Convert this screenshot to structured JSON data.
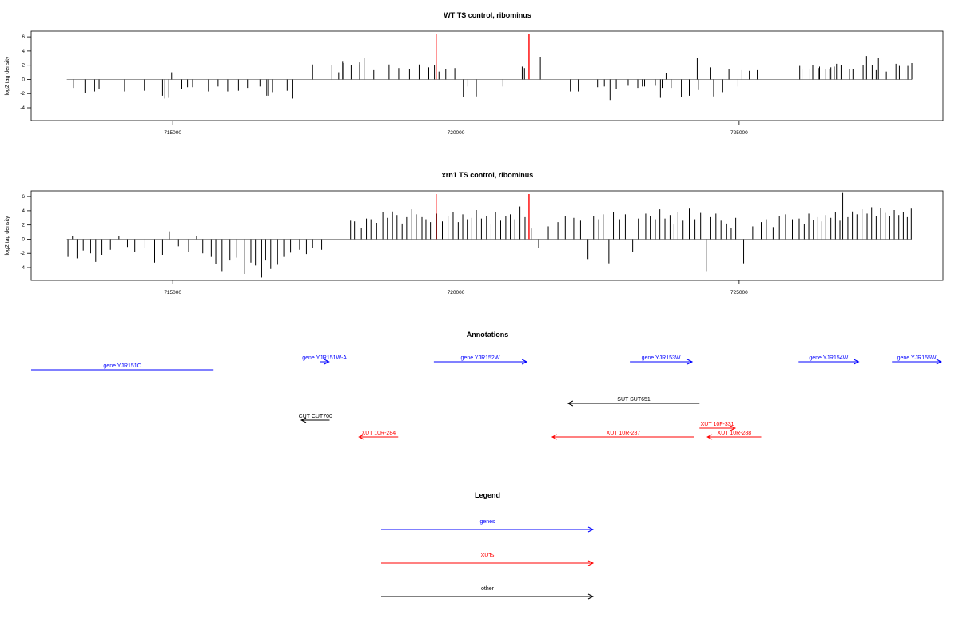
{
  "chart_data": [
    {
      "type": "bar",
      "title": "WT TS control, ribominus",
      "xlabel": "",
      "ylabel": "log2 tag density",
      "xlim": [
        712500,
        728600
      ],
      "ylim": [
        -5.8,
        6.8
      ],
      "yticks": [
        -4,
        -2,
        0,
        2,
        4,
        6
      ],
      "xticks": [
        715000,
        720000,
        725000
      ],
      "xtick_labels": [
        "715000",
        "720000",
        "725000"
      ],
      "baseline_color": "#999999",
      "baseline_range": [
        713130,
        728050
      ],
      "markers": [
        719650,
        721290
      ],
      "marker_color": "#ff0000",
      "bar_color": "#000000",
      "x": [
        713250,
        713450,
        713620,
        713700,
        714150,
        714500,
        714820,
        714860,
        714930,
        714980,
        715160,
        715260,
        715350,
        715630,
        715800,
        715970,
        716160,
        716320,
        716540,
        716660,
        716690,
        716760,
        716980,
        717020,
        717120,
        717470,
        717810,
        717930,
        718000,
        718020,
        718150,
        718300,
        718300,
        718380,
        718550,
        718820,
        718990,
        719180,
        719350,
        719520,
        719620,
        719700,
        719820,
        719980,
        720130,
        720210,
        720360,
        720550,
        720830,
        721170,
        721210,
        721490,
        722020,
        722160,
        722500,
        722620,
        722720,
        722830,
        723040,
        723210,
        723290,
        723330,
        723520,
        723610,
        723640,
        723710,
        723800,
        723980,
        724120,
        724260,
        724280,
        724500,
        724550,
        724710,
        724820,
        724980,
        725050,
        725180,
        725320,
        726070,
        726110,
        726250,
        726300,
        726400,
        726420,
        726530,
        726600,
        726620,
        726680,
        726720,
        726800,
        726950,
        727010,
        727190,
        727250,
        727350,
        727420,
        727460,
        727600,
        727770,
        727830,
        727930,
        727980,
        728050
      ],
      "values": [
        -1.2,
        -1.9,
        -1.7,
        -1.3,
        -1.7,
        -1.6,
        -2.3,
        -2.7,
        -2.6,
        1.0,
        -1.3,
        -1.1,
        -1.1,
        -1.7,
        -1.0,
        -1.7,
        -1.6,
        -1.2,
        -1.0,
        -2.3,
        -2.3,
        -1.8,
        -3.0,
        -1.6,
        -2.7,
        2.1,
        2.0,
        1.0,
        2.6,
        2.3,
        2.0,
        2.4,
        2.0,
        3.0,
        1.3,
        2.1,
        1.6,
        1.4,
        2.1,
        1.7,
        2.0,
        1.1,
        1.5,
        1.6,
        -2.5,
        -1.0,
        -2.4,
        -1.3,
        -1.0,
        1.8,
        1.6,
        3.2,
        -1.7,
        -1.7,
        -1.1,
        -1.0,
        -2.9,
        -1.3,
        -0.9,
        -1.2,
        -1.0,
        -1.0,
        -0.9,
        -2.6,
        -1.2,
        0.9,
        -1.2,
        -2.5,
        -2.3,
        3.0,
        -1.5,
        1.7,
        -2.4,
        -1.8,
        1.4,
        -1.0,
        1.3,
        1.2,
        1.3,
        1.9,
        1.4,
        1.4,
        2.0,
        1.6,
        1.8,
        1.5,
        1.4,
        1.7,
        1.8,
        2.2,
        2.0,
        1.4,
        1.5,
        2.0,
        3.3,
        2.0,
        1.3,
        3.0,
        1.1,
        2.2,
        1.9,
        1.3,
        1.9,
        2.3
      ]
    },
    {
      "type": "bar",
      "title": "xrn1 TS control, ribominus",
      "xlabel": "",
      "ylabel": "log2 tag density",
      "xlim": [
        712500,
        728600
      ],
      "ylim": [
        -5.8,
        6.8
      ],
      "yticks": [
        -4,
        -2,
        0,
        2,
        4,
        6
      ],
      "xticks": [
        715000,
        720000,
        725000
      ],
      "xtick_labels": [
        "715000",
        "720000",
        "725000"
      ],
      "baseline_color": "#999999",
      "baseline_range": [
        713130,
        728050
      ],
      "markers": [
        719650,
        721290
      ],
      "marker_color": "#ff0000",
      "bar_color": "#000000",
      "x": [
        713150,
        713230,
        713310,
        713420,
        713550,
        713640,
        713750,
        713900,
        714050,
        714200,
        714330,
        714510,
        714680,
        714820,
        714940,
        715100,
        715280,
        715420,
        715530,
        715680,
        715760,
        715870,
        716010,
        716130,
        716270,
        716380,
        716460,
        716570,
        716640,
        716730,
        716850,
        716960,
        717080,
        717240,
        717360,
        717470,
        717630,
        718140,
        718210,
        718330,
        718420,
        718500,
        718600,
        718710,
        718790,
        718880,
        718960,
        719050,
        719130,
        719220,
        719300,
        719400,
        719470,
        719550,
        719660,
        719760,
        719860,
        719950,
        720040,
        720120,
        720200,
        720280,
        720360,
        720450,
        720540,
        720620,
        720700,
        720790,
        720880,
        720960,
        721040,
        721130,
        721220,
        721330,
        721460,
        721630,
        721800,
        721930,
        722080,
        722200,
        722330,
        722430,
        722520,
        722600,
        722700,
        722780,
        722890,
        722990,
        723120,
        723220,
        723350,
        723430,
        723520,
        723600,
        723690,
        723780,
        723850,
        723920,
        724010,
        724120,
        724220,
        724320,
        724420,
        724500,
        724590,
        724680,
        724780,
        724860,
        724940,
        725080,
        725240,
        725390,
        725480,
        725600,
        725710,
        725820,
        725940,
        726060,
        726150,
        726230,
        726310,
        726390,
        726460,
        726530,
        726620,
        726700,
        726780,
        726830,
        726920,
        727000,
        727080,
        727170,
        727260,
        727340,
        727420,
        727500,
        727580,
        727660,
        727740,
        727820,
        727900,
        727970,
        728040
      ],
      "values": [
        -2.5,
        0.4,
        -2.7,
        -1.6,
        -2.0,
        -3.2,
        -2.2,
        -1.5,
        0.5,
        -1.1,
        -1.8,
        -1.3,
        -3.3,
        -2.2,
        1.1,
        -1.0,
        -1.8,
        0.4,
        -2.0,
        -2.5,
        -3.5,
        -4.5,
        -3.0,
        -2.6,
        -4.9,
        -3.3,
        -3.7,
        -5.4,
        -3.0,
        -4.2,
        -3.6,
        -2.5,
        -1.9,
        -1.5,
        -2.1,
        -1.2,
        -1.5,
        2.6,
        2.5,
        1.6,
        2.9,
        2.8,
        2.3,
        3.8,
        3.0,
        3.9,
        3.4,
        2.2,
        3.1,
        4.2,
        3.5,
        3.1,
        2.8,
        2.4,
        3.6,
        2.5,
        3.2,
        3.8,
        2.4,
        3.5,
        2.8,
        3.0,
        4.1,
        2.9,
        3.3,
        2.1,
        3.8,
        2.6,
        3.2,
        3.5,
        2.8,
        4.6,
        3.1,
        1.5,
        -1.2,
        1.8,
        2.4,
        3.2,
        3.0,
        2.6,
        -2.8,
        3.3,
        2.8,
        3.5,
        -3.4,
        3.8,
        2.8,
        3.5,
        -1.8,
        2.9,
        3.6,
        3.2,
        2.8,
        4.2,
        2.9,
        3.4,
        2.1,
        3.8,
        2.6,
        4.3,
        2.8,
        3.7,
        -4.5,
        3.1,
        3.6,
        2.6,
        2.2,
        1.6,
        3.0,
        -3.4,
        1.8,
        2.4,
        2.8,
        1.7,
        3.2,
        3.5,
        2.8,
        2.9,
        2.1,
        3.6,
        2.7,
        3.1,
        2.5,
        3.4,
        3.0,
        3.8,
        2.6,
        6.5,
        3.1,
        3.9,
        3.5,
        4.2,
        3.6,
        4.5,
        3.3,
        4.4,
        3.7,
        3.2,
        4.1,
        3.4,
        3.8,
        3.1,
        4.3
      ]
    }
  ],
  "annotations": {
    "title": "Annotations",
    "features": [
      {
        "label": "gene YJR151C",
        "start": 715720,
        "end": 712500,
        "color": "#0000ff",
        "arrow": false
      },
      {
        "label": "gene YJR151W-A",
        "start": 717600,
        "end": 717760,
        "color": "#0000ff",
        "arrow": true
      },
      {
        "label": "gene YJR152W",
        "start": 719610,
        "end": 721250,
        "color": "#0000ff",
        "arrow": true
      },
      {
        "label": "gene YJR153W",
        "start": 723070,
        "end": 724170,
        "color": "#0000ff",
        "arrow": true
      },
      {
        "label": "gene YJR154W",
        "start": 726050,
        "end": 727110,
        "color": "#0000ff",
        "arrow": true
      },
      {
        "label": "gene YJR155W",
        "start": 727700,
        "end": 728570,
        "color": "#0000ff",
        "arrow": true
      },
      {
        "label": "SUT SUT651",
        "start": 724300,
        "end": 721980,
        "color": "#000000",
        "arrow": true
      },
      {
        "label": "CUT CUT700",
        "start": 717770,
        "end": 717270,
        "color": "#000000",
        "arrow": true
      },
      {
        "label": "XUT 10R-284",
        "start": 718980,
        "end": 718290,
        "color": "#ff0000",
        "arrow": true
      },
      {
        "label": "XUT 10R-287",
        "start": 724210,
        "end": 721700,
        "color": "#ff0000",
        "arrow": true
      },
      {
        "label": "XUT 10F-331",
        "start": 724300,
        "end": 724930,
        "color": "#ff0000",
        "arrow": true
      },
      {
        "label": "XUT 10R-288",
        "start": 725390,
        "end": 724440,
        "color": "#ff0000",
        "arrow": true
      }
    ]
  },
  "legend": {
    "title": "Legend",
    "items": [
      {
        "label": "genes",
        "color": "#0000ff"
      },
      {
        "label": "XUTs",
        "color": "#ff0000"
      },
      {
        "label": "other",
        "color": "#000000"
      }
    ]
  }
}
